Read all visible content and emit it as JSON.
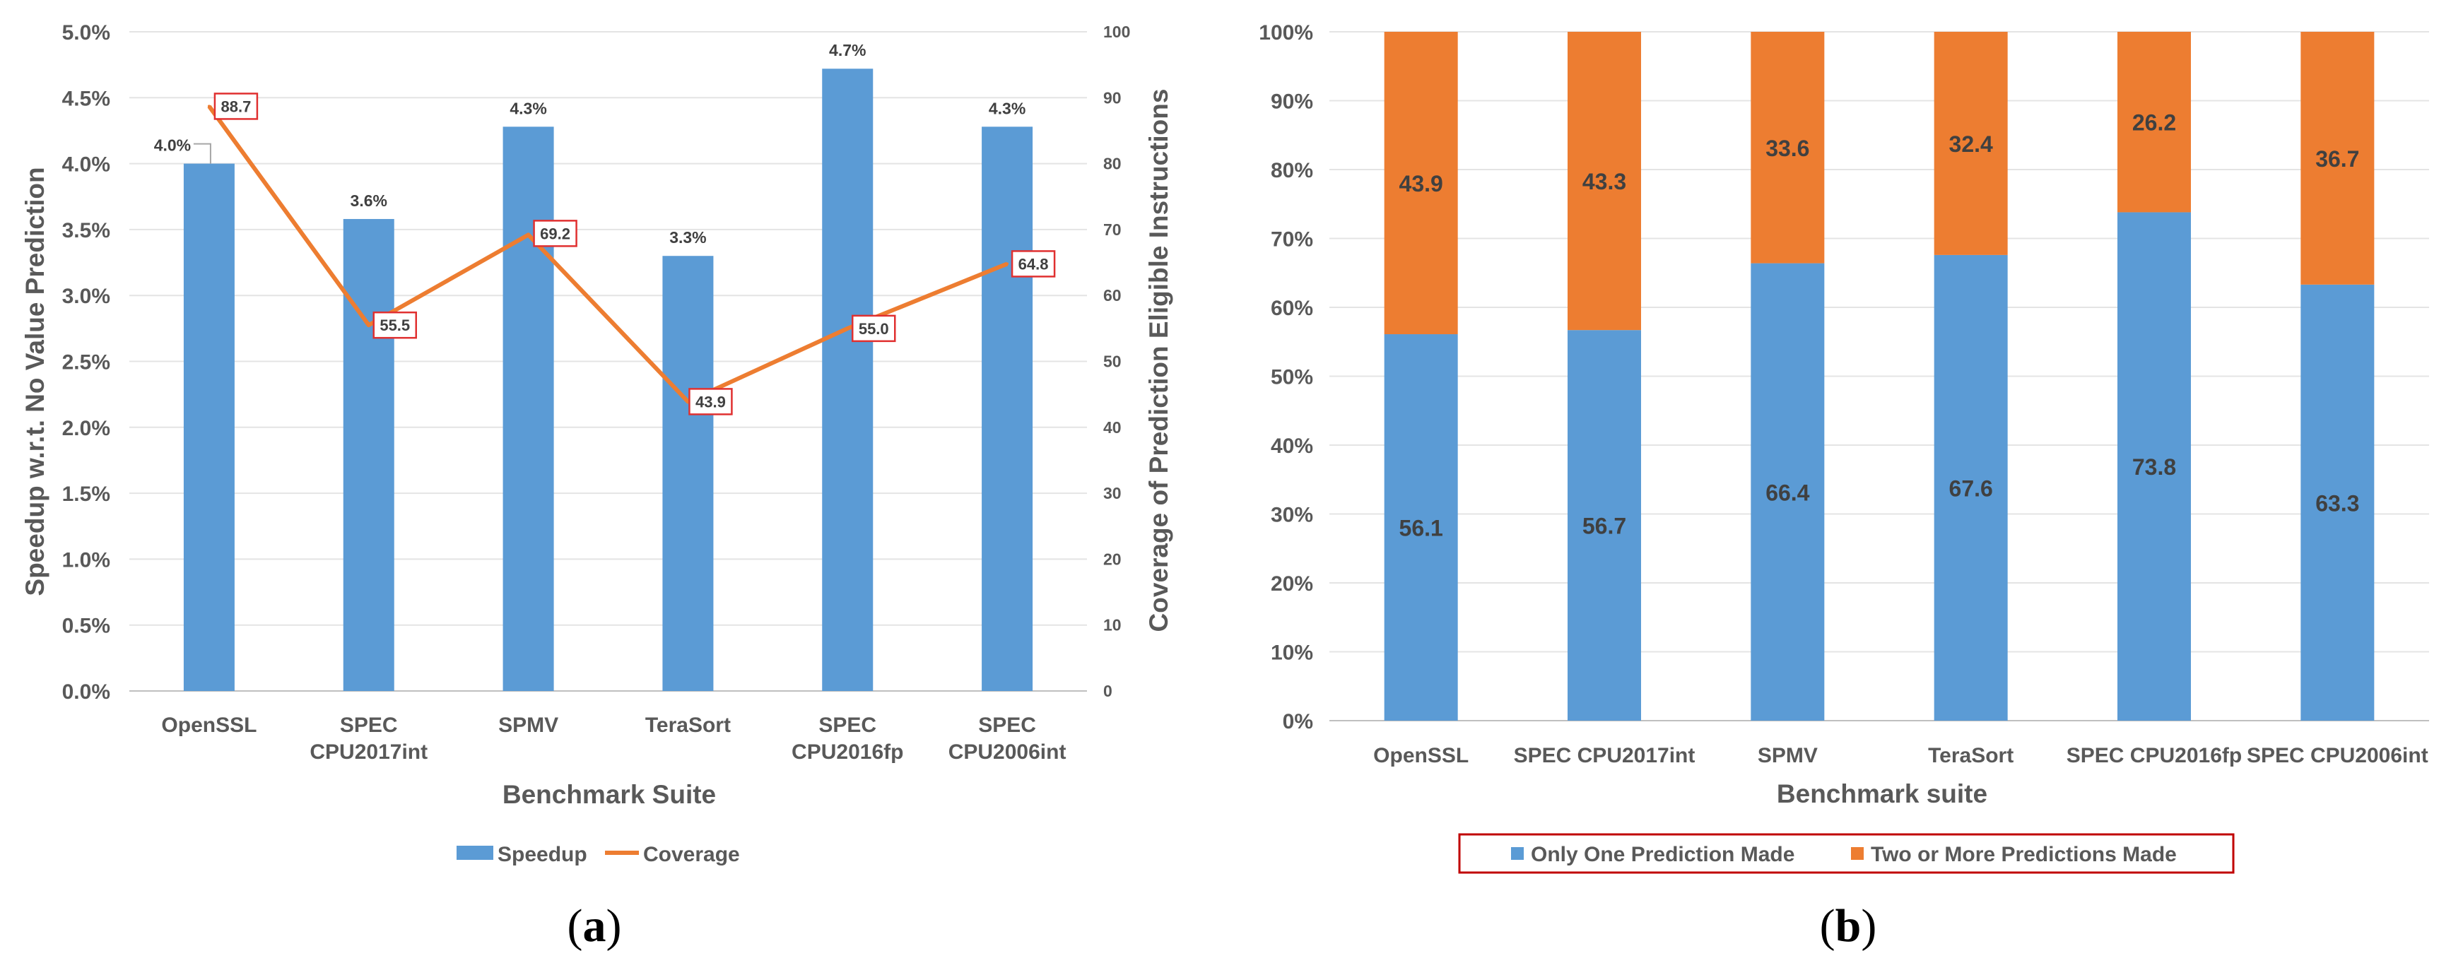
{
  "chart_data": [
    {
      "id": "a",
      "type": "bar+line",
      "panel_label": "a",
      "categories": [
        [
          "OpenSSL"
        ],
        [
          "SPEC",
          "CPU2017int"
        ],
        [
          "SPMV"
        ],
        [
          "TeraSort"
        ],
        [
          "SPEC",
          "CPU2016fp"
        ],
        [
          "SPEC",
          "CPU2006int"
        ]
      ],
      "xlabel": "Benchmark Suite",
      "ylabel": "Speedup w.r.t. No Value Prediction",
      "y2label": "Coverage of Prediction Eligible Instructions",
      "ylim": [
        0,
        5.0
      ],
      "y2lim": [
        0,
        100
      ],
      "y_ticks": [
        "0.0%",
        "0.5%",
        "1.0%",
        "1.5%",
        "2.0%",
        "2.5%",
        "3.0%",
        "3.5%",
        "4.0%",
        "4.5%",
        "5.0%"
      ],
      "y2_ticks": [
        "0",
        "10",
        "20",
        "30",
        "40",
        "50",
        "60",
        "70",
        "80",
        "90",
        "100"
      ],
      "series": [
        {
          "name": "Speedup",
          "kind": "bar",
          "color": "#5B9BD5",
          "values": [
            4.0,
            3.58,
            4.28,
            3.3,
            4.72,
            4.28
          ],
          "labels": [
            "4.0%",
            "3.6%",
            "4.3%",
            "3.3%",
            "4.7%",
            "4.3%"
          ]
        },
        {
          "name": "Coverage",
          "kind": "line",
          "axis": "secondary",
          "color": "#ED7D31",
          "values": [
            88.7,
            55.5,
            69.2,
            43.9,
            55.0,
            64.8
          ],
          "labels": [
            "88.7",
            "55.5",
            "69.2",
            "43.9",
            "55.0",
            "64.8"
          ]
        }
      ],
      "legend": [
        "Speedup",
        "Coverage"
      ]
    },
    {
      "id": "b",
      "type": "stacked-bar",
      "panel_label": "b",
      "categories": [
        "OpenSSL",
        "SPEC CPU2017int",
        "SPMV",
        "TeraSort",
        "SPEC CPU2016fp",
        "SPEC CPU2006int"
      ],
      "xlabel": "Benchmark suite",
      "ylim": [
        0,
        100
      ],
      "y_ticks": [
        "0%",
        "10%",
        "20%",
        "30%",
        "40%",
        "50%",
        "60%",
        "70%",
        "80%",
        "90%",
        "100%"
      ],
      "series": [
        {
          "name": "Only One Prediction Made",
          "color": "#5B9BD5",
          "values": [
            56.1,
            56.7,
            66.4,
            67.6,
            73.8,
            63.3
          ],
          "labels": [
            "56.1",
            "56.7",
            "66.4",
            "67.6",
            "73.8",
            "63.3"
          ]
        },
        {
          "name": "Two or More Predictions Made",
          "color": "#ED7D31",
          "values": [
            43.9,
            43.3,
            33.6,
            32.4,
            26.2,
            36.7
          ],
          "labels": [
            "43.9",
            "43.3",
            "33.6",
            "32.4",
            "26.2",
            "36.7"
          ]
        }
      ],
      "legend": [
        "Only One Prediction Made",
        "Two or More Predictions Made"
      ]
    }
  ]
}
